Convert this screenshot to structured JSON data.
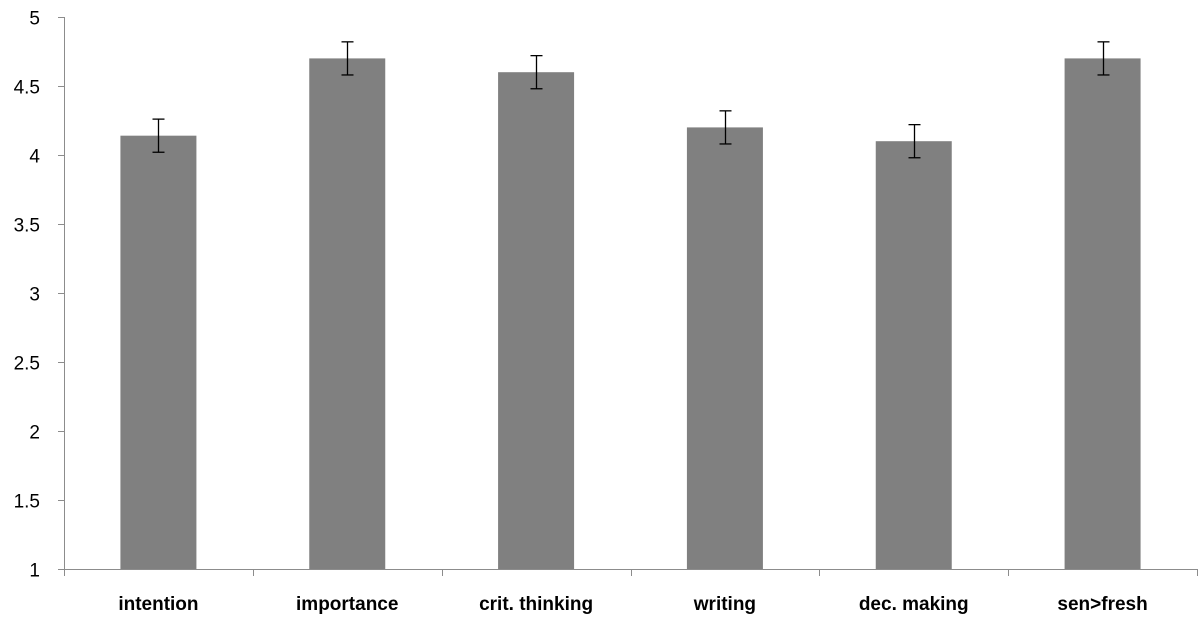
{
  "chart_data": {
    "type": "bar",
    "title": "",
    "xlabel": "",
    "ylabel": "",
    "categories": [
      "intention",
      "importance",
      "crit. thinking",
      "writing",
      "dec. making",
      "sen>fresh"
    ],
    "values": [
      4.14,
      4.7,
      4.6,
      4.2,
      4.1,
      4.7
    ],
    "error": [
      0.12,
      0.12,
      0.12,
      0.12,
      0.12,
      0.12
    ],
    "ylim": [
      1,
      5
    ],
    "yticks": [
      "1",
      "1.5",
      "2",
      "2.5",
      "3",
      "3.5",
      "4",
      "4.5",
      "5"
    ],
    "grid": false,
    "legend": "none",
    "bar_color": "#808080",
    "axis_color": "#8c8c8c",
    "errorbar_color": "#000000"
  }
}
